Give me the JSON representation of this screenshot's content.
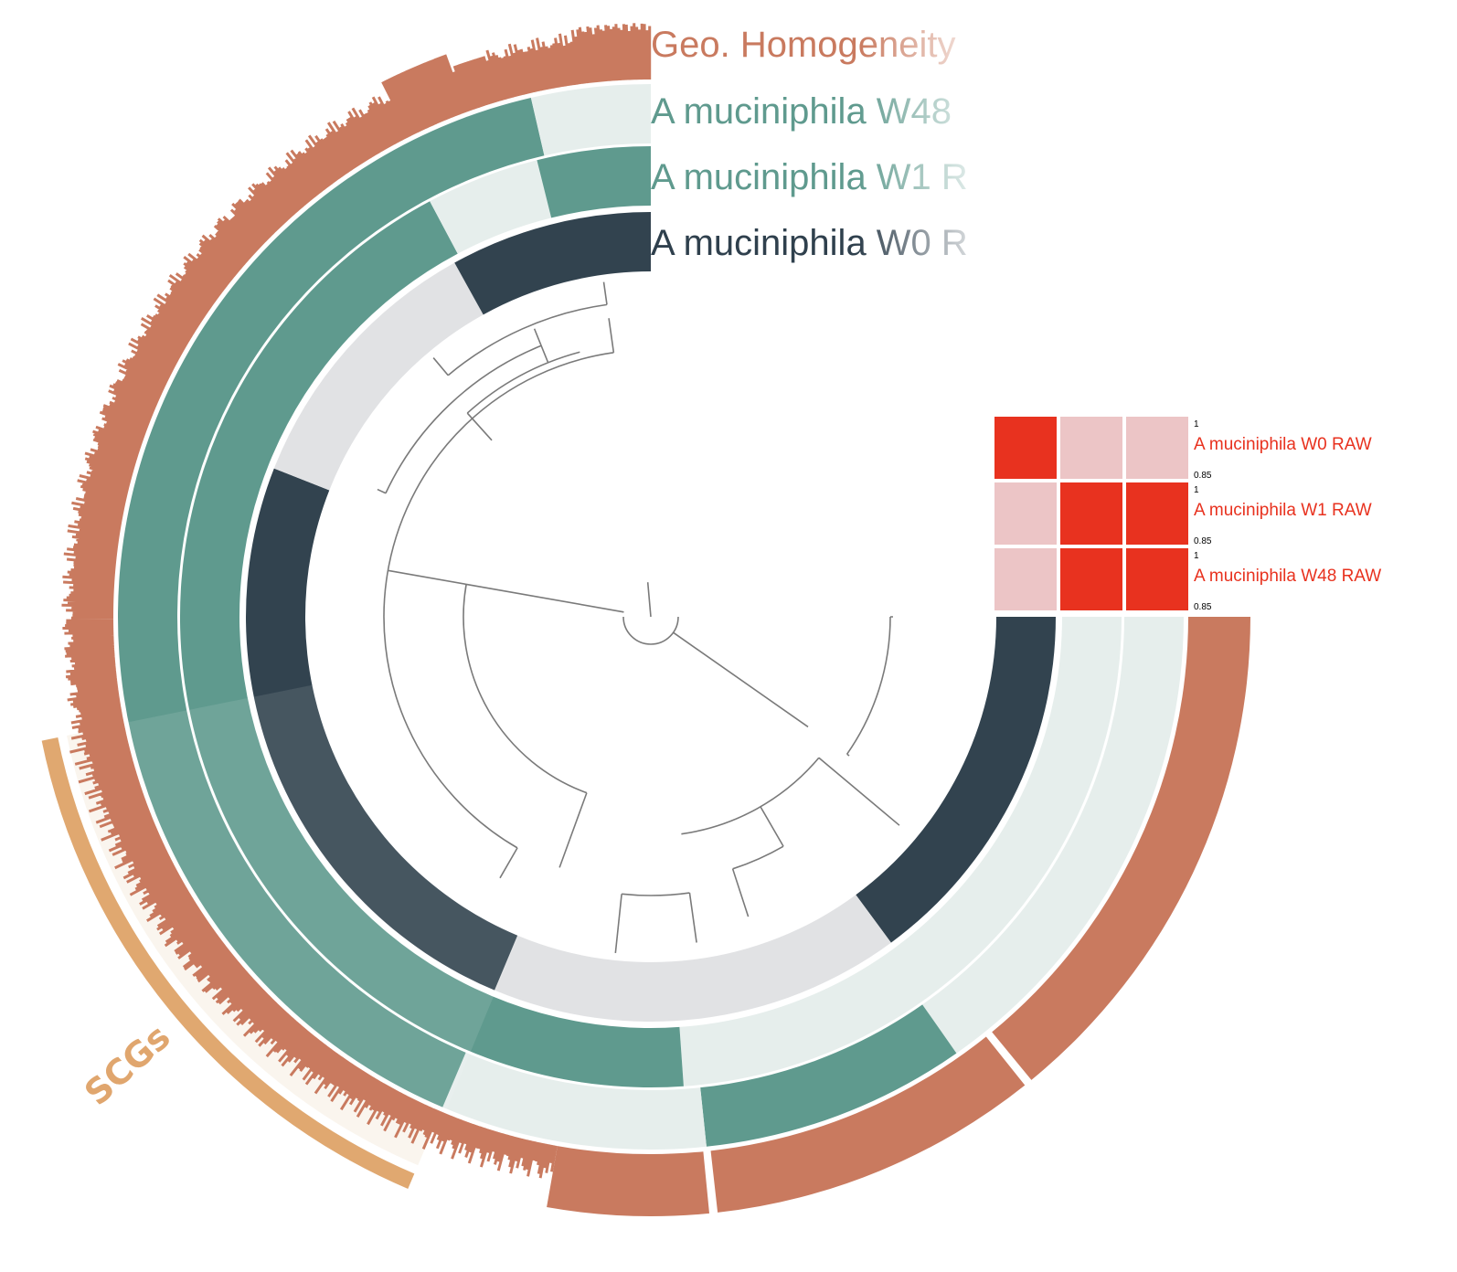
{
  "layers": [
    {
      "label": "Geo. Homogeneity"
    },
    {
      "label": "A muciniphila W48"
    },
    {
      "label": "A muciniphila W1 R"
    },
    {
      "label": "A muciniphila W0 R"
    }
  ],
  "heatmap": {
    "rows": [
      {
        "label": "A muciniphila W0 RAW",
        "max": 1,
        "min": 0.85
      },
      {
        "label": "A muciniphila W1 RAW",
        "max": 1,
        "min": 0.85
      },
      {
        "label": "A muciniphila W48 RAW",
        "max": 1,
        "min": 0.85
      }
    ]
  },
  "bin": {
    "label": "SCGs"
  }
}
